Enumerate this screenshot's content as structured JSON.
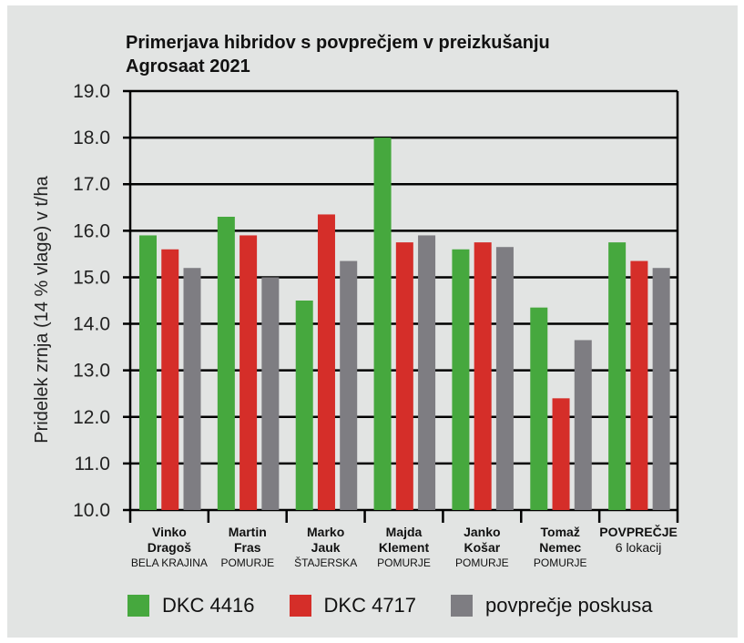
{
  "chart_data": {
    "type": "bar",
    "title": "Primerjava hibridov s povprečjem v preizkušanju Agrosaat 2021",
    "title_lines": [
      "Primerjava hibridov s povprečjem v preizkušanju",
      "Agrosaat 2021"
    ],
    "ylabel": "Pridelek zrnja (14 % vlage) v t/ha",
    "xlabel": "",
    "ylim": [
      10,
      19
    ],
    "yticks": [
      "10.0",
      "11.0",
      "12.0",
      "13.0",
      "14.0",
      "15.0",
      "16.0",
      "17.0",
      "18.0",
      "19.0"
    ],
    "grid": true,
    "legend_position": "bottom",
    "categories": [
      {
        "name": [
          "Vinko",
          "Dragoš"
        ],
        "region": "BELA KRAJINA"
      },
      {
        "name": [
          "Martin",
          "Fras"
        ],
        "region": "POMURJE"
      },
      {
        "name": [
          "Marko",
          "Jauk"
        ],
        "region": "ŠTAJERSKA"
      },
      {
        "name": [
          "Majda",
          "Klement"
        ],
        "region": "POMURJE"
      },
      {
        "name": [
          "Janko",
          "Košar"
        ],
        "region": "POMURJE"
      },
      {
        "name": [
          "Tomaž",
          "Nemec"
        ],
        "region": "POMURJE"
      },
      {
        "name": [
          "POVPREČJE"
        ],
        "region": "6 lokacij"
      }
    ],
    "series": [
      {
        "name": "DKC 4416",
        "color": "#46a83e",
        "values": [
          15.9,
          16.3,
          14.5,
          18.0,
          15.6,
          14.35,
          15.75
        ]
      },
      {
        "name": "DKC 4717",
        "color": "#d52e29",
        "values": [
          15.6,
          15.9,
          16.35,
          15.75,
          15.75,
          12.4,
          15.35
        ]
      },
      {
        "name": "povprečje poskusa",
        "color": "#7e7d82",
        "values": [
          15.2,
          15.0,
          15.35,
          15.9,
          15.65,
          13.65,
          15.2
        ]
      }
    ]
  }
}
